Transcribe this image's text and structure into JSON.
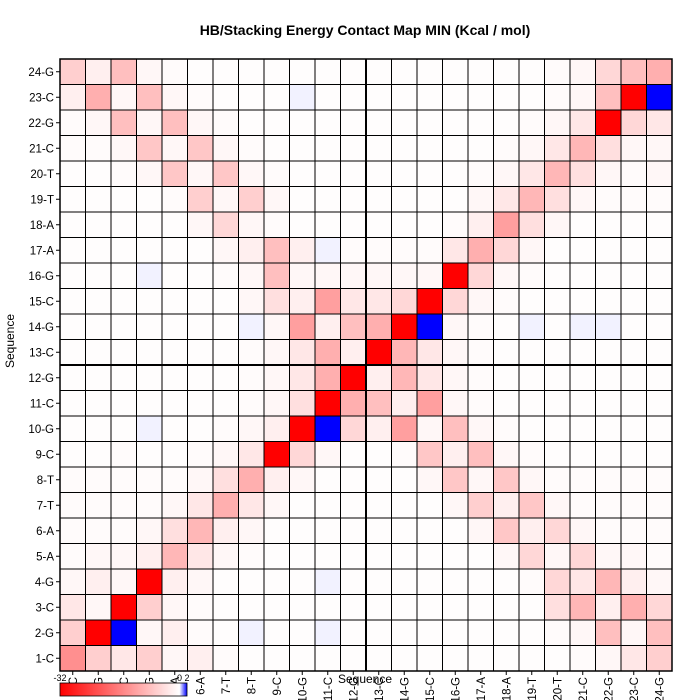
{
  "chart_data": {
    "type": "heatmap",
    "title": "HB/Stacking Energy Contact Map MIN (Kcal / mol)",
    "xlabel": "Sequence",
    "ylabel": "Sequence",
    "x_categories": [
      "1-C",
      "2-G",
      "3-C",
      "4-G",
      "5-A",
      "6-A",
      "7-T",
      "8-T",
      "9-C",
      "10-G",
      "11-C",
      "12-G",
      "13-C",
      "14-G",
      "15-C",
      "16-G",
      "17-A",
      "18-A",
      "19-T",
      "20-T",
      "21-C",
      "22-G",
      "23-C",
      "24-G"
    ],
    "y_categories": [
      "1-C",
      "2-G",
      "3-C",
      "4-G",
      "5-A",
      "6-A",
      "7-T",
      "8-T",
      "9-C",
      "10-G",
      "11-C",
      "12-G",
      "13-C",
      "14-G",
      "15-C",
      "16-G",
      "17-A",
      "18-A",
      "19-T",
      "20-T",
      "21-C",
      "22-G",
      "23-C",
      "24-G"
    ],
    "color_scale": {
      "min": -32,
      "mid": 0,
      "max": 2,
      "labels": [
        "-32",
        "0",
        "2"
      ],
      "low_color": "#ff0000",
      "mid_color": "#ffffff",
      "high_color": "#0000ff"
    },
    "grid": true,
    "values": [
      [
        -14,
        -6,
        -3,
        -6,
        -1,
        -2,
        -0.5,
        -0.3,
        -0.3,
        -0.3,
        -0.3,
        -0.2,
        -0.2,
        -0.2,
        -0.2,
        -0.2,
        -0.2,
        -0.2,
        -0.2,
        -0.3,
        -0.5,
        -1,
        -3,
        -6
      ],
      [
        -6,
        -32,
        2,
        -1,
        -2,
        -0.5,
        -0.3,
        0.1,
        -0.2,
        -0.3,
        0.1,
        -0.2,
        -0.2,
        -0.3,
        -0.2,
        -0.2,
        -0.2,
        -0.2,
        -0.3,
        -0.5,
        -1,
        -8,
        -1,
        -8
      ],
      [
        -3,
        -1,
        -32,
        -6,
        -1,
        -0.5,
        -0.3,
        -0.2,
        -0.3,
        -0.3,
        -0.2,
        -0.2,
        -0.2,
        -0.2,
        -0.3,
        -0.2,
        -0.2,
        -0.2,
        -0.3,
        -4,
        -9,
        -2,
        -10,
        -5
      ],
      [
        -1,
        -2,
        -1,
        -32,
        -2,
        -1,
        -0.3,
        -0.3,
        -0.3,
        -0.2,
        0.1,
        -0.3,
        -0.2,
        -0.3,
        -0.2,
        -0.2,
        -0.2,
        -0.2,
        -0.5,
        -5,
        -3,
        -9,
        -2,
        -1
      ],
      [
        -0.5,
        -1,
        -1,
        -2,
        -9,
        -3,
        -1,
        -0.5,
        -0.3,
        -0.3,
        -0.2,
        -0.2,
        -0.2,
        -0.2,
        -0.2,
        -0.2,
        -0.3,
        -1,
        -5,
        -1,
        -5,
        -1,
        -1,
        -0.5
      ],
      [
        -0.5,
        -0.5,
        -0.5,
        -1,
        -4,
        -9,
        -2,
        -1,
        -0.3,
        -0.3,
        -0.2,
        -0.2,
        -0.2,
        -0.2,
        -0.2,
        -0.3,
        -1,
        -7,
        -2,
        -5,
        -1,
        -0.5,
        -0.5,
        -0.5
      ],
      [
        -0.5,
        -0.5,
        -0.5,
        -0.5,
        -1,
        -3,
        -10,
        -3,
        -1,
        -0.3,
        -0.2,
        -0.2,
        -0.2,
        -0.2,
        -0.3,
        -1,
        -6,
        -2,
        -7,
        -1,
        -0.5,
        -0.5,
        -0.5,
        -0.5
      ],
      [
        -0.5,
        -0.5,
        -0.5,
        -0.5,
        -0.5,
        -1,
        -4,
        -10,
        -2,
        -1,
        -0.3,
        -0.2,
        -0.2,
        -0.3,
        -1,
        -7,
        -1,
        -7,
        -1,
        -0.5,
        -0.5,
        -0.5,
        -0.5,
        -0.5
      ],
      [
        -0.3,
        -0.3,
        -0.5,
        -0.3,
        -0.3,
        -0.5,
        -1,
        -3,
        -32,
        -5,
        -1,
        -0.3,
        -0.3,
        -0.5,
        -7,
        -2,
        -8,
        -1,
        -0.5,
        -0.3,
        -0.3,
        -0.3,
        -0.3,
        -0.3
      ],
      [
        -0.3,
        -0.3,
        -0.3,
        0.1,
        -0.3,
        -0.3,
        -0.5,
        -1,
        -2,
        -32,
        2,
        -5,
        -2,
        -12,
        -1,
        -8,
        -1,
        -0.5,
        -0.3,
        -0.3,
        -0.3,
        -0.3,
        -0.3,
        -0.3
      ],
      [
        -0.3,
        -0.3,
        -0.3,
        -0.3,
        -0.3,
        -0.3,
        -0.3,
        -0.5,
        -1,
        -4,
        -32,
        -10,
        -8,
        -2,
        -12,
        -1,
        -0.5,
        -0.3,
        -0.3,
        -0.3,
        -0.3,
        -0.3,
        -0.3,
        -0.3
      ],
      [
        -0.3,
        -0.3,
        -0.3,
        -0.3,
        -0.3,
        -0.3,
        -0.3,
        -0.5,
        -1,
        -3,
        -10,
        -32,
        -2,
        -9,
        -3,
        -1,
        -0.5,
        -0.3,
        -0.3,
        -0.3,
        -0.3,
        -0.3,
        -0.3,
        -0.3
      ],
      [
        -0.3,
        -0.3,
        -0.3,
        -0.3,
        -0.3,
        -0.3,
        -0.3,
        -0.5,
        -1,
        -3,
        -10,
        -2,
        -32,
        -9,
        -3,
        -1,
        -0.5,
        -0.3,
        -0.3,
        -0.3,
        -0.3,
        -0.3,
        -0.3,
        -0.3
      ],
      [
        -0.3,
        -0.3,
        -0.3,
        -0.3,
        -0.3,
        -0.3,
        -0.3,
        0.1,
        -1,
        -12,
        -2,
        -8,
        -10,
        -32,
        2,
        -1,
        -0.5,
        -0.3,
        0.1,
        -0.3,
        0.1,
        0.1,
        -0.3,
        -0.3
      ],
      [
        -0.3,
        -0.3,
        -0.3,
        -0.3,
        -0.3,
        -0.3,
        -0.3,
        -1,
        -4,
        -2,
        -12,
        -3,
        -3,
        -5,
        -32,
        -5,
        -1,
        -0.5,
        -0.3,
        -0.3,
        -0.3,
        -0.3,
        -0.3,
        -0.3
      ],
      [
        -0.3,
        -0.3,
        -0.3,
        0.1,
        -0.3,
        -0.3,
        -0.5,
        -1,
        -8,
        -1,
        -1,
        -1,
        -1,
        -1,
        -1,
        -32,
        -5,
        -1,
        -0.5,
        -0.3,
        -0.3,
        -0.3,
        -0.3,
        -0.3
      ],
      [
        -0.3,
        -0.3,
        -0.3,
        -0.3,
        -0.3,
        -0.3,
        -1,
        -2,
        -8,
        -2,
        0.1,
        -0.5,
        -0.5,
        -0.5,
        -0.5,
        -3,
        -10,
        -5,
        -1,
        -0.3,
        -0.3,
        -0.3,
        -0.3,
        -0.3
      ],
      [
        -0.3,
        -0.3,
        -0.3,
        -0.3,
        -0.3,
        -1,
        -5,
        -1,
        -0.5,
        -0.3,
        -0.3,
        -0.3,
        -0.3,
        -0.3,
        -0.3,
        -0.5,
        -2,
        -12,
        -4,
        -1,
        -0.3,
        -0.3,
        -0.3,
        -0.3
      ],
      [
        -0.3,
        -0.3,
        -0.3,
        -0.3,
        -0.5,
        -6,
        -1,
        -6,
        -1,
        -0.3,
        -0.3,
        -0.3,
        -0.3,
        -0.3,
        -0.3,
        -0.3,
        -1,
        -3,
        -9,
        -4,
        -1,
        -0.5,
        -0.5,
        -0.5
      ],
      [
        -0.3,
        -0.3,
        -0.5,
        -1,
        -7,
        -1,
        -7,
        -1,
        -0.5,
        -0.3,
        -0.3,
        -0.3,
        -0.3,
        -0.3,
        -0.3,
        -0.3,
        -0.5,
        -1,
        -3,
        -9,
        -4,
        -1,
        -0.5,
        -1
      ],
      [
        -0.5,
        -0.5,
        -1,
        -7,
        -1,
        -7,
        -1,
        -0.5,
        -0.3,
        -0.3,
        -0.3,
        -0.3,
        -0.3,
        -0.3,
        -0.3,
        -0.3,
        -0.3,
        -0.5,
        -1,
        -3,
        -9,
        -4,
        -1,
        -1
      ],
      [
        -0.5,
        -1,
        -8,
        -1,
        -8,
        -1,
        -0.5,
        -0.3,
        -0.3,
        -0.3,
        -0.3,
        -0.3,
        -0.3,
        -0.3,
        -0.3,
        -0.3,
        -0.3,
        -0.3,
        -0.5,
        -1,
        -3,
        -32,
        -5,
        -3
      ],
      [
        -2,
        -10,
        -1,
        -8,
        -1,
        -0.5,
        -0.3,
        -0.3,
        -0.3,
        0.1,
        -0.3,
        -0.3,
        -0.3,
        -0.3,
        -0.3,
        -0.3,
        -0.3,
        -0.3,
        -0.3,
        -0.5,
        -1,
        -8,
        -32,
        2
      ],
      [
        -6,
        -2,
        -8,
        -1,
        -0.5,
        -0.3,
        -0.3,
        -0.3,
        -0.3,
        -0.3,
        -0.3,
        -0.3,
        -0.3,
        -0.3,
        -0.3,
        -0.3,
        -0.3,
        -0.3,
        -0.3,
        -0.5,
        -1,
        -5,
        -8,
        -10
      ]
    ]
  }
}
